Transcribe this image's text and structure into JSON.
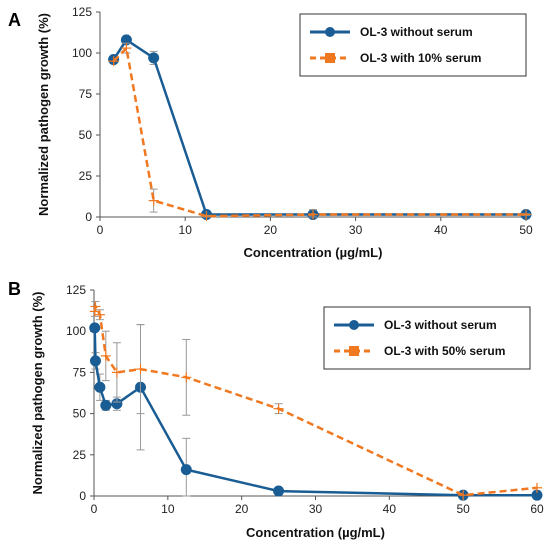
{
  "chart_data": [
    {
      "panel": "A",
      "type": "line",
      "xlabel": "Concentration (µg/mL)",
      "ylabel": "Normalized pathogen growth (%)",
      "xlim": [
        0,
        50
      ],
      "ylim": [
        0,
        125
      ],
      "xticks": [
        0,
        10,
        20,
        30,
        40,
        50
      ],
      "yticks": [
        0,
        25,
        50,
        75,
        100,
        125
      ],
      "legend_position": "top-right",
      "grid": false,
      "series": [
        {
          "name": "OL-3 without serum",
          "style": "solid",
          "marker": "circle",
          "color": "#1a5d94",
          "x": [
            1.6,
            3.1,
            6.3,
            12.5,
            25,
            50
          ],
          "y": [
            96,
            108,
            97,
            1.5,
            1.5,
            1.5
          ],
          "err": [
            0,
            2,
            4,
            1,
            1,
            1
          ]
        },
        {
          "name": "OL-3 with 10% serum",
          "style": "dashed",
          "marker": "square",
          "color": "#f07820",
          "x": [
            1.6,
            3.1,
            6.3,
            12.5,
            25,
            50
          ],
          "y": [
            95,
            103,
            10,
            0.5,
            1.5,
            1.5
          ],
          "err": [
            0,
            3,
            7,
            0.5,
            3,
            0.5
          ]
        }
      ]
    },
    {
      "panel": "B",
      "type": "line",
      "xlabel": "Concentration (µg/mL)",
      "ylabel": "Normalized pathogen growth (%)",
      "xlim": [
        0,
        60
      ],
      "ylim": [
        0,
        125
      ],
      "xticks": [
        0,
        10,
        20,
        30,
        40,
        50,
        60
      ],
      "yticks": [
        0,
        25,
        50,
        75,
        100,
        125
      ],
      "legend_position": "top-right",
      "grid": false,
      "series": [
        {
          "name": "OL-3 without serum",
          "style": "solid",
          "marker": "circle",
          "color": "#1a5d94",
          "x": [
            0.1,
            0.2,
            0.8,
            1.6,
            3.1,
            6.3,
            12.5,
            25,
            50,
            60
          ],
          "y": [
            102,
            82,
            66,
            55,
            56,
            66,
            16,
            3,
            0.5,
            0.5
          ],
          "err": [
            0,
            5,
            8,
            3,
            4,
            38,
            19,
            0,
            0,
            0
          ]
        },
        {
          "name": "OL-3 with 50% serum",
          "style": "dashed",
          "marker": "square",
          "color": "#f07820",
          "x": [
            0.1,
            0.2,
            0.8,
            1.6,
            3.1,
            6.3,
            12.5,
            25,
            50,
            60
          ],
          "y": [
            112,
            115,
            110,
            85,
            75,
            77,
            72,
            53,
            0.5,
            5
          ],
          "err": [
            3,
            3,
            3,
            15,
            18,
            27,
            23,
            3,
            0,
            0
          ]
        }
      ]
    }
  ],
  "panels": [
    {
      "label": "A"
    },
    {
      "label": "B"
    }
  ]
}
